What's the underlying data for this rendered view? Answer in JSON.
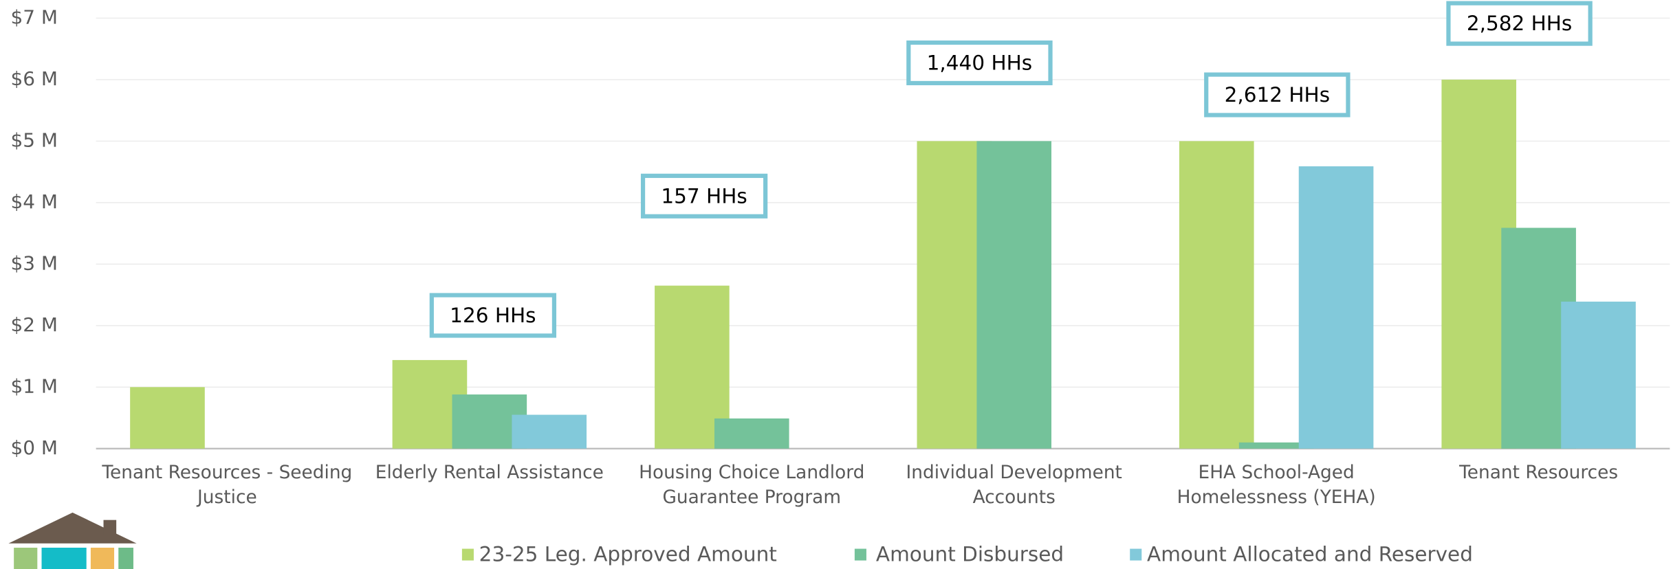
{
  "chart_data": {
    "type": "bar",
    "categories": [
      "Tenant Resources - Seeding Justice",
      "Elderly Rental Assistance",
      "Housing Choice Landlord Guarantee Program",
      "Individual Development Accounts",
      "EHA School-Aged Homelessness (YEHA)",
      "Tenant Resources"
    ],
    "series": [
      {
        "name": "23-25 Leg. Approved Amount",
        "color": "#b8d970",
        "values": [
          1.0,
          1.44,
          2.65,
          5.0,
          5.0,
          6.0
        ]
      },
      {
        "name": "Amount Disbursed",
        "color": "#74c29a",
        "values": [
          0,
          0.88,
          0.49,
          5.0,
          0.1,
          3.59
        ]
      },
      {
        "name": "Amount Allocated and Reserved",
        "color": "#82c9da",
        "values": [
          0,
          0.55,
          0,
          0,
          4.59,
          2.39
        ]
      }
    ],
    "annotations": [
      null,
      "126 HHs",
      "157 HHs",
      "1,440 HHs",
      "2,612 HHs",
      "2,582 HHs"
    ],
    "ylim": [
      0,
      7
    ],
    "yticks": [
      {
        "value": 0,
        "label": "$0 M"
      },
      {
        "value": 1,
        "label": "$1 M"
      },
      {
        "value": 2,
        "label": "$2 M"
      },
      {
        "value": 3,
        "label": "$3 M"
      },
      {
        "value": 4,
        "label": "$4 M"
      },
      {
        "value": 5,
        "label": "$5 M"
      },
      {
        "value": 6,
        "label": "$6 M"
      },
      {
        "value": 7,
        "label": "$7 M"
      }
    ],
    "grid": true,
    "legend": "bottom"
  }
}
